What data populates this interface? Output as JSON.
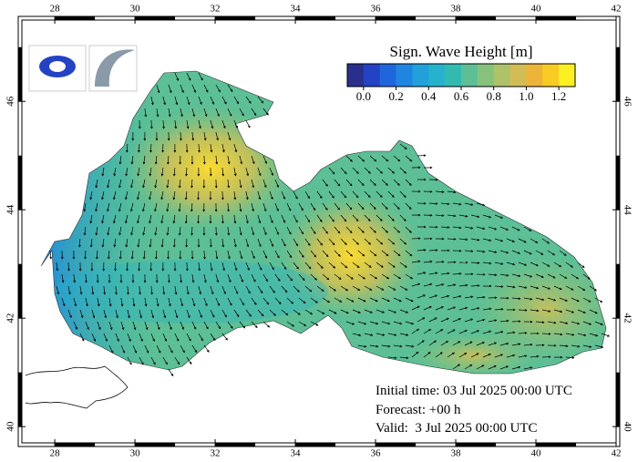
{
  "map": {
    "title": "Sign. Wave Height [m]",
    "lon_range": [
      27.18,
      42
    ],
    "lat_range": [
      39.7,
      47.5
    ],
    "lon_ticks": [
      28,
      30,
      32,
      34,
      36,
      38,
      40,
      42
    ],
    "lat_ticks": [
      40,
      42,
      44,
      46
    ],
    "colorbar": {
      "range": [
        -0.1,
        1.3
      ],
      "colors": [
        "#2b2f8c",
        "#2342c4",
        "#1f66dc",
        "#1e86e0",
        "#22a0dc",
        "#26b2cc",
        "#33bab0",
        "#5cbf96",
        "#86c27c",
        "#aec268",
        "#d2bc56",
        "#eeb43a",
        "#f8cc24",
        "#fcf020"
      ],
      "ticks": [
        {
          "value": 0,
          "label": "0.0"
        },
        {
          "value": 0.2,
          "label": "0.2"
        },
        {
          "value": 0.4,
          "label": "0.4"
        },
        {
          "value": 0.6,
          "label": "0.6"
        },
        {
          "value": 0.8,
          "label": "0.8"
        },
        {
          "value": 1.0,
          "label": "1.0"
        },
        {
          "value": 1.2,
          "label": "1.2"
        }
      ]
    },
    "info": [
      "Initial time: 03 Jul 2025 00:00 UTC",
      "Forecast: +00 h",
      "Valid:  3 Jul 2025 00:00 UTC"
    ]
  }
}
